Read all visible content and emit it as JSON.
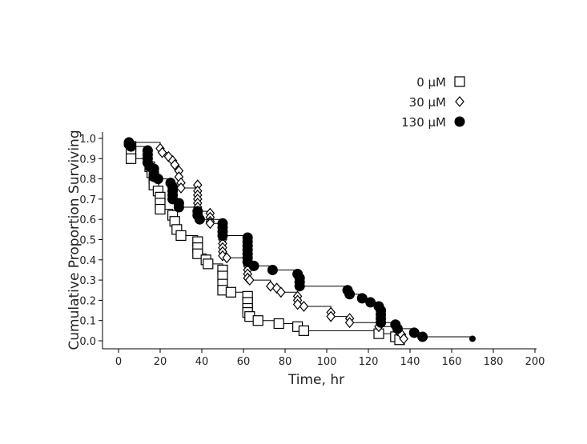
{
  "chart_data": {
    "type": "line",
    "subtype": "kaplan-meier step survival",
    "xlabel": "Time, hr",
    "ylabel": "Cumulative Proportion Surviving",
    "xlim": [
      0,
      200
    ],
    "ylim": [
      0,
      1.0
    ],
    "xticks": [
      "0",
      "20",
      "40",
      "60",
      "80",
      "100",
      "120",
      "140",
      "160",
      "180",
      "200"
    ],
    "yticks": [
      "0.0",
      "0.1",
      "0.2",
      "0.3",
      "0.4",
      "0.5",
      "0.6",
      "0.7",
      "0.8",
      "0.9",
      "1.0"
    ],
    "grid": false,
    "legend_position": "top-right",
    "series": [
      {
        "name": "0 µM",
        "marker": "square",
        "points": [
          [
            6,
            0.96
          ],
          [
            6,
            0.93
          ],
          [
            6,
            0.9
          ],
          [
            15,
            0.86
          ],
          [
            16,
            0.83
          ],
          [
            17,
            0.8
          ],
          [
            17,
            0.77
          ],
          [
            19,
            0.74
          ],
          [
            20,
            0.71
          ],
          [
            20,
            0.68
          ],
          [
            20,
            0.65
          ],
          [
            26,
            0.62
          ],
          [
            27,
            0.59
          ],
          [
            28,
            0.55
          ],
          [
            30,
            0.52
          ],
          [
            38,
            0.49
          ],
          [
            38,
            0.46
          ],
          [
            38,
            0.43
          ],
          [
            42,
            0.4
          ],
          [
            43,
            0.38
          ],
          [
            50,
            0.35
          ],
          [
            50,
            0.32
          ],
          [
            50,
            0.28
          ],
          [
            50,
            0.25
          ],
          [
            54,
            0.24
          ],
          [
            62,
            0.22
          ],
          [
            62,
            0.19
          ],
          [
            62,
            0.16
          ],
          [
            62,
            0.14
          ],
          [
            63,
            0.12
          ],
          [
            67,
            0.1
          ],
          [
            77,
            0.085
          ],
          [
            86,
            0.07
          ],
          [
            89,
            0.05
          ],
          [
            125,
            0.035
          ],
          [
            133,
            0.02
          ],
          [
            135,
            0.005
          ]
        ]
      },
      {
        "name": "30 µM",
        "marker": "diamond",
        "points": [
          [
            5,
            0.98
          ],
          [
            20,
            0.95
          ],
          [
            21,
            0.93
          ],
          [
            24,
            0.91
          ],
          [
            26,
            0.89
          ],
          [
            27,
            0.87
          ],
          [
            29,
            0.84
          ],
          [
            29,
            0.81
          ],
          [
            30,
            0.78
          ],
          [
            30,
            0.755
          ],
          [
            38,
            0.77
          ],
          [
            38,
            0.74
          ],
          [
            38,
            0.72
          ],
          [
            38,
            0.7
          ],
          [
            38,
            0.68
          ],
          [
            38,
            0.66
          ],
          [
            38,
            0.64
          ],
          [
            44,
            0.63
          ],
          [
            44,
            0.61
          ],
          [
            44,
            0.59
          ],
          [
            44,
            0.58
          ],
          [
            50,
            0.56
          ],
          [
            50,
            0.54
          ],
          [
            50,
            0.52
          ],
          [
            50,
            0.5
          ],
          [
            50,
            0.48
          ],
          [
            50,
            0.46
          ],
          [
            50,
            0.44
          ],
          [
            50,
            0.42
          ],
          [
            52,
            0.41
          ],
          [
            62,
            0.39
          ],
          [
            62,
            0.37
          ],
          [
            62,
            0.35
          ],
          [
            62,
            0.33
          ],
          [
            62,
            0.31
          ],
          [
            63,
            0.3
          ],
          [
            73,
            0.27
          ],
          [
            76,
            0.26
          ],
          [
            78,
            0.24
          ],
          [
            86,
            0.22
          ],
          [
            86,
            0.2
          ],
          [
            86,
            0.18
          ],
          [
            89,
            0.17
          ],
          [
            102,
            0.14
          ],
          [
            102,
            0.12
          ],
          [
            111,
            0.11
          ],
          [
            111,
            0.09
          ],
          [
            125,
            0.07
          ],
          [
            134,
            0.05
          ],
          [
            136,
            0.03
          ],
          [
            137,
            0.01
          ]
        ]
      },
      {
        "name": "130 µM",
        "marker": "circle",
        "points": [
          [
            5,
            0.98
          ],
          [
            5,
            0.97
          ],
          [
            6,
            0.96
          ],
          [
            14,
            0.94
          ],
          [
            14,
            0.92
          ],
          [
            14,
            0.9
          ],
          [
            14,
            0.88
          ],
          [
            15,
            0.86
          ],
          [
            17,
            0.85
          ],
          [
            17,
            0.83
          ],
          [
            17,
            0.81
          ],
          [
            19,
            0.8
          ],
          [
            25,
            0.78
          ],
          [
            26,
            0.76
          ],
          [
            26,
            0.74
          ],
          [
            26,
            0.72
          ],
          [
            26,
            0.7
          ],
          [
            29,
            0.68
          ],
          [
            29,
            0.66
          ],
          [
            38,
            0.64
          ],
          [
            38,
            0.62
          ],
          [
            39,
            0.6
          ],
          [
            50,
            0.58
          ],
          [
            50,
            0.56
          ],
          [
            50,
            0.54
          ],
          [
            50,
            0.52
          ],
          [
            62,
            0.51
          ],
          [
            62,
            0.49
          ],
          [
            62,
            0.47
          ],
          [
            62,
            0.45
          ],
          [
            62,
            0.43
          ],
          [
            62,
            0.41
          ],
          [
            62,
            0.39
          ],
          [
            65,
            0.37
          ],
          [
            74,
            0.35
          ],
          [
            86,
            0.33
          ],
          [
            87,
            0.31
          ],
          [
            87,
            0.29
          ],
          [
            87,
            0.27
          ],
          [
            110,
            0.25
          ],
          [
            111,
            0.23
          ],
          [
            117,
            0.21
          ],
          [
            121,
            0.19
          ],
          [
            125,
            0.17
          ],
          [
            126,
            0.15
          ],
          [
            126,
            0.13
          ],
          [
            126,
            0.11
          ],
          [
            126,
            0.09
          ],
          [
            133,
            0.08
          ],
          [
            134,
            0.06
          ],
          [
            142,
            0.04
          ],
          [
            146,
            0.02
          ],
          [
            170,
            0.01
          ]
        ]
      }
    ]
  }
}
